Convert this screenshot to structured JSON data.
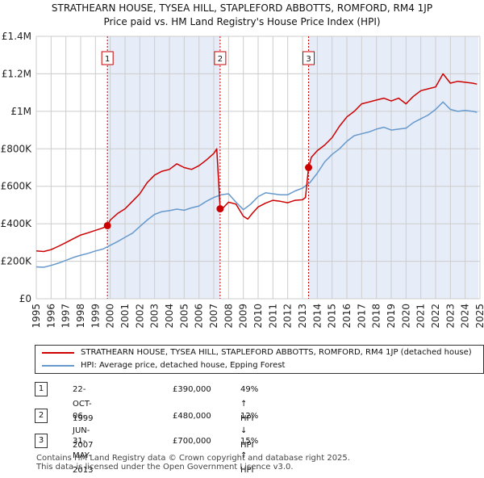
{
  "header": {
    "title_line1": "STRATHEARN HOUSE, TYSEA HILL, STAPLEFORD ABBOTTS, ROMFORD, RM4 1JP",
    "title_line2": "Price paid vs. HM Land Registry's House Price Index (HPI)"
  },
  "legend": {
    "property_label": "STRATHEARN HOUSE, TYSEA HILL, STAPLEFORD ABBOTTS, ROMFORD, RM4 1JP (detached house)",
    "hpi_label": "HPI: Average price, detached house, Epping Forest"
  },
  "sales": [
    {
      "num": "1",
      "date": "22-OCT-1999",
      "price": "£390,000",
      "hpi": "49% ↑ HPI"
    },
    {
      "num": "2",
      "date": "06-JUN-2007",
      "price": "£480,000",
      "hpi": "12% ↓ HPI"
    },
    {
      "num": "3",
      "date": "31-MAY-2013",
      "price": "£700,000",
      "hpi": "15% ↑ HPI"
    }
  ],
  "footer": {
    "line1": "Contains HM Land Registry data © Crown copyright and database right 2025.",
    "line2": "This data is licensed under the Open Government Licence v3.0."
  },
  "colors": {
    "property": "#cc0000",
    "hpi": "#6699cc",
    "shade": "#dde6f5",
    "grid": "#cccccc"
  },
  "chart_data": {
    "type": "line",
    "title": "STRATHEARN HOUSE, TYSEA HILL, STAPLEFORD ABBOTTS, ROMFORD, RM4 1JP",
    "subtitle": "Price paid vs. HM Land Registry's House Price Index (HPI)",
    "xlim": [
      1995,
      2025
    ],
    "ylim": [
      0,
      1400000
    ],
    "x_ticks": [
      1995,
      1996,
      1997,
      1998,
      1999,
      2000,
      2001,
      2002,
      2003,
      2004,
      2005,
      2006,
      2007,
      2008,
      2009,
      2010,
      2011,
      2012,
      2013,
      2014,
      2015,
      2016,
      2017,
      2018,
      2019,
      2020,
      2021,
      2022,
      2023,
      2024,
      2025
    ],
    "y_ticks": [
      {
        "value": 0,
        "label": "£0"
      },
      {
        "value": 200000,
        "label": "£200K"
      },
      {
        "value": 400000,
        "label": "£400K"
      },
      {
        "value": 600000,
        "label": "£600K"
      },
      {
        "value": 800000,
        "label": "£800K"
      },
      {
        "value": 1000000,
        "label": "£1M"
      },
      {
        "value": 1200000,
        "label": "£1.2M"
      },
      {
        "value": 1400000,
        "label": "£1.4M"
      }
    ],
    "series": [
      {
        "name": "STRATHEARN HOUSE, TYSEA HILL, STAPLEFORD ABBOTTS, ROMFORD, RM4 1JP (detached house)",
        "color": "#cc0000",
        "x": [
          1995.0,
          1995.5,
          1996.0,
          1996.5,
          1997.0,
          1997.5,
          1998.0,
          1998.5,
          1999.0,
          1999.5,
          1999.8,
          2000.0,
          2000.5,
          2001.0,
          2001.5,
          2002.0,
          2002.5,
          2003.0,
          2003.5,
          2004.0,
          2004.5,
          2005.0,
          2005.5,
          2006.0,
          2006.5,
          2007.0,
          2007.2,
          2007.43,
          2007.6,
          2008.0,
          2008.5,
          2009.0,
          2009.3,
          2009.6,
          2010.0,
          2010.5,
          2011.0,
          2011.5,
          2012.0,
          2012.5,
          2013.0,
          2013.2,
          2013.41,
          2013.6,
          2014.0,
          2014.5,
          2015.0,
          2015.5,
          2016.0,
          2016.5,
          2017.0,
          2017.5,
          2018.0,
          2018.5,
          2019.0,
          2019.5,
          2020.0,
          2020.5,
          2021.0,
          2021.5,
          2022.0,
          2022.5,
          2023.0,
          2023.5,
          2024.0,
          2024.5,
          2024.8
        ],
        "y": [
          255000,
          252000,
          262000,
          280000,
          300000,
          320000,
          340000,
          352000,
          365000,
          378000,
          390000,
          420000,
          455000,
          480000,
          520000,
          560000,
          620000,
          660000,
          680000,
          690000,
          720000,
          700000,
          690000,
          710000,
          740000,
          775000,
          800000,
          480000,
          482000,
          515000,
          505000,
          440000,
          425000,
          455000,
          490000,
          510000,
          525000,
          520000,
          512000,
          525000,
          528000,
          540000,
          700000,
          755000,
          790000,
          820000,
          860000,
          920000,
          970000,
          1000000,
          1040000,
          1050000,
          1060000,
          1070000,
          1055000,
          1070000,
          1040000,
          1080000,
          1110000,
          1120000,
          1130000,
          1200000,
          1150000,
          1160000,
          1155000,
          1150000,
          1145000
        ]
      },
      {
        "name": "HPI: Average price, detached house, Epping Forest",
        "color": "#6699cc",
        "x": [
          1995.0,
          1995.5,
          1996.0,
          1996.5,
          1997.0,
          1997.5,
          1998.0,
          1998.5,
          1999.0,
          1999.5,
          2000.0,
          2000.5,
          2001.0,
          2001.5,
          2002.0,
          2002.5,
          2003.0,
          2003.5,
          2004.0,
          2004.5,
          2005.0,
          2005.5,
          2006.0,
          2006.5,
          2007.0,
          2007.5,
          2008.0,
          2008.5,
          2009.0,
          2009.5,
          2010.0,
          2010.5,
          2011.0,
          2011.5,
          2012.0,
          2012.5,
          2013.0,
          2013.5,
          2014.0,
          2014.5,
          2015.0,
          2015.5,
          2016.0,
          2016.5,
          2017.0,
          2017.5,
          2018.0,
          2018.5,
          2019.0,
          2019.5,
          2020.0,
          2020.5,
          2021.0,
          2021.5,
          2022.0,
          2022.5,
          2023.0,
          2023.5,
          2024.0,
          2024.5,
          2024.8
        ],
        "y": [
          170000,
          168000,
          178000,
          190000,
          205000,
          220000,
          232000,
          242000,
          255000,
          265000,
          285000,
          305000,
          328000,
          350000,
          385000,
          420000,
          450000,
          465000,
          470000,
          478000,
          472000,
          485000,
          495000,
          520000,
          540000,
          555000,
          560000,
          515000,
          475000,
          505000,
          545000,
          565000,
          560000,
          555000,
          555000,
          575000,
          590000,
          620000,
          670000,
          730000,
          770000,
          800000,
          840000,
          870000,
          880000,
          890000,
          905000,
          915000,
          900000,
          905000,
          910000,
          940000,
          960000,
          980000,
          1010000,
          1050000,
          1010000,
          1000000,
          1005000,
          1000000,
          995000
        ]
      }
    ],
    "sales": [
      {
        "label": "1",
        "x": 1999.81,
        "y": 390000
      },
      {
        "label": "2",
        "x": 2007.43,
        "y": 480000
      },
      {
        "label": "3",
        "x": 2013.41,
        "y": 700000
      }
    ],
    "shaded_periods": [
      [
        1999.81,
        2007.43
      ],
      [
        2013.41,
        2024.9
      ]
    ]
  }
}
